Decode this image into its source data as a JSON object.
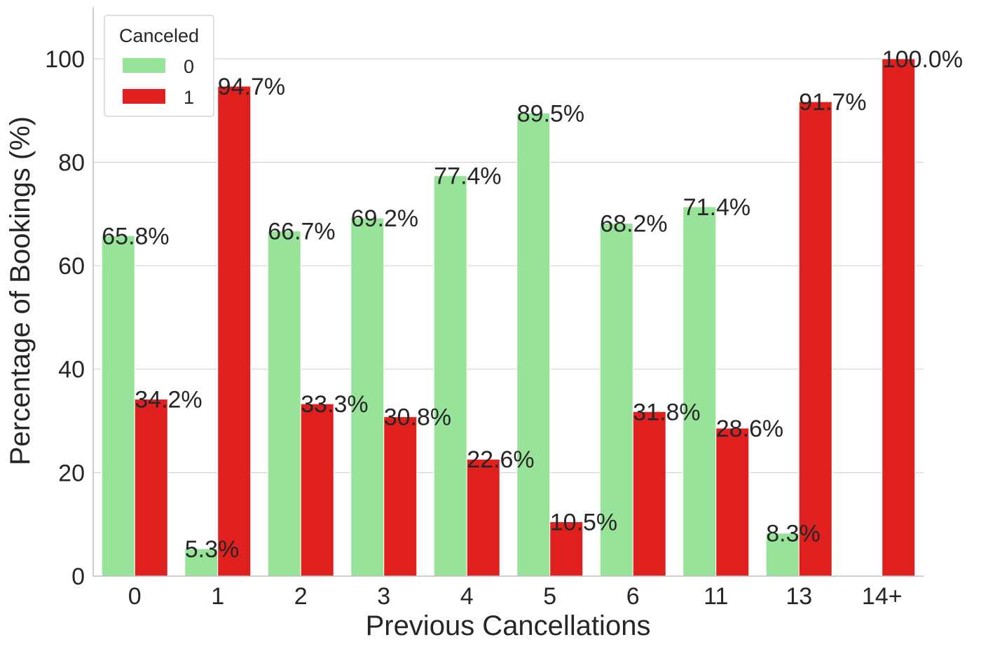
{
  "chart_data": {
    "type": "bar",
    "title": "",
    "xlabel": "Previous Cancellations",
    "ylabel": "Percentage of Bookings (%)",
    "categories": [
      "0",
      "1",
      "2",
      "3",
      "4",
      "5",
      "6",
      "11",
      "13",
      "14+"
    ],
    "ylim": [
      0,
      110
    ],
    "yticks": [
      0,
      20,
      40,
      60,
      80,
      100
    ],
    "grid": "horizontal",
    "legend": {
      "title": "Canceled",
      "placement": "top-left"
    },
    "series": [
      {
        "name": "0",
        "color": "#98e39a",
        "values": [
          65.8,
          5.3,
          66.7,
          69.2,
          77.4,
          89.5,
          68.2,
          71.4,
          8.3,
          0
        ],
        "labels": [
          "65.8%",
          "5.3%",
          "66.7%",
          "69.2%",
          "77.4%",
          "89.5%",
          "68.2%",
          "71.4%",
          "8.3%",
          ""
        ]
      },
      {
        "name": "1",
        "color": "#e01f1f",
        "values": [
          34.2,
          94.7,
          33.3,
          30.8,
          22.6,
          10.5,
          31.8,
          28.6,
          91.7,
          100.0
        ],
        "labels": [
          "34.2%",
          "94.7%",
          "33.3%",
          "30.8%",
          "22.6%",
          "10.5%",
          "31.8%",
          "28.6%",
          "91.7%",
          "100.0%"
        ]
      }
    ]
  }
}
